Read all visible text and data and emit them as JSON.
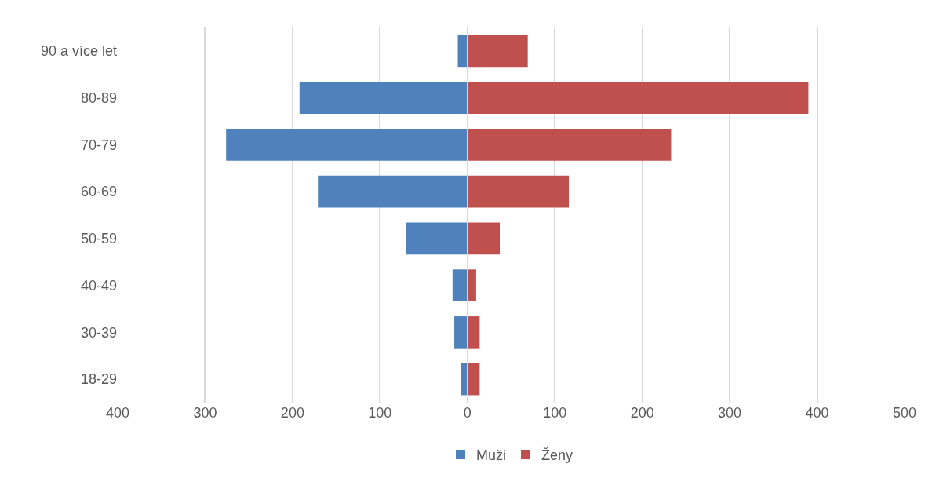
{
  "chart_data": {
    "type": "bar",
    "orientation": "horizontal",
    "categories": [
      "90 a více let",
      "80-89",
      "70-79",
      "60-69",
      "50-59",
      "40-49",
      "30-39",
      "18-29"
    ],
    "series": [
      {
        "name": "Muži",
        "color": "#4f81bd",
        "values": [
          -11,
          -192,
          -276,
          -171,
          -70,
          -17,
          -15,
          -7
        ]
      },
      {
        "name": "Ženy",
        "color": "#c0504d",
        "values": [
          69,
          390,
          233,
          116,
          37,
          10,
          14,
          14
        ]
      }
    ],
    "xlim": [
      -400,
      500
    ],
    "xticks": [
      {
        "value": -400,
        "label": "400"
      },
      {
        "value": -300,
        "label": "300"
      },
      {
        "value": -200,
        "label": "200"
      },
      {
        "value": -100,
        "label": "100"
      },
      0,
      100,
      200,
      300,
      400,
      500
    ],
    "grid": "x",
    "legend": "bottom",
    "stacked": true
  }
}
